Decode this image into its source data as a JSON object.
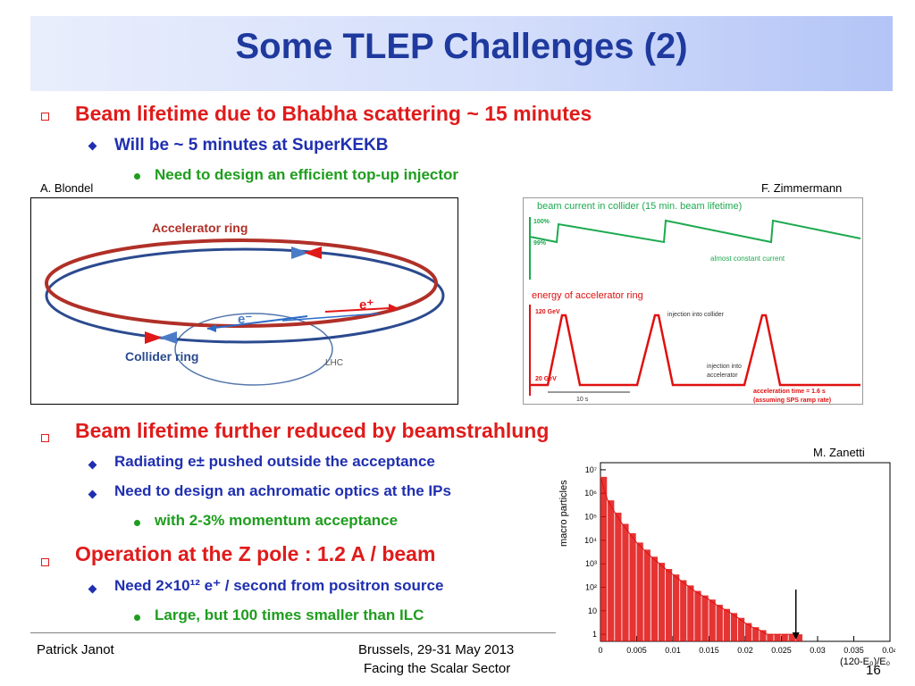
{
  "slide": {
    "title": "Some TLEP Challenges (2)",
    "bullets_top": {
      "l1": "Beam lifetime due to Bhabha scattering ~ 15 minutes",
      "l2": "Will be ~ 5 minutes at SuperKEKB",
      "l3": "Need to design an efficient top-up injector"
    },
    "bullets_bottom": {
      "l1a": "Beam lifetime further reduced by beamstrahlung",
      "l2a": "Radiating e± pushed outside the acceptance",
      "l2b": "Need to design an achromatic optics at the IPs",
      "l3a": "with 2-3% momentum acceptance",
      "l1b": "Operation at the Z pole : 1.2 A / beam",
      "l2c": "Need 2×10¹² e⁺ / second from positron source",
      "l3b": "Large, but 100 times smaller than ILC"
    },
    "credits": {
      "left": "A. Blondel",
      "middle": "F. Zimmermann",
      "right": "M. Zanetti"
    },
    "footer": {
      "author": "Patrick Janot",
      "venue": "Brussels, 29-31 May 2013",
      "event": "Facing the Scalar Sector",
      "page": "16"
    }
  },
  "ring_figure": {
    "accelerator_label": "Accelerator  ring",
    "collider_label": "Collider  ring",
    "electron_label": "e⁻",
    "positron_label": "e⁺",
    "cut_label": "LHC"
  },
  "timeline_figure": {
    "title_top": "beam current in collider (15 min. beam lifetime)",
    "label_100": "100%",
    "label_99": "99%",
    "note_current": "almost constant current",
    "title_bottom": "energy of accelerator ring",
    "label_120": "120 GeV",
    "label_20": "20 GeV",
    "note_inj_collider": "injection into collider",
    "note_inj_acc_1": "injection into",
    "note_inj_acc_2": "accelerator",
    "note_time_1": "acceleration  time = 1.6 s",
    "note_time_2": "(assuming SPS ramp rate)",
    "label_10s": "10 s",
    "colors": {
      "current": "#1daa4f",
      "energy": "#e01010"
    }
  },
  "chart_data": {
    "type": "bar",
    "ylabel": "macro particles",
    "xlabel": "(120-E₀)/E₀",
    "xlim": [
      0,
      0.04
    ],
    "ylim": [
      0.5,
      20000000
    ],
    "yscale": "log",
    "xticks": [
      "0",
      "0.005",
      "0.01",
      "0.015",
      "0.02",
      "0.025",
      "0.03",
      "0.035",
      "0.04"
    ],
    "yticks": [
      "1",
      "10",
      "10²",
      "10³",
      "10⁴",
      "10⁵",
      "10⁶",
      "10⁷"
    ],
    "series": [
      {
        "color": "#e01010",
        "x": [
          0.0,
          0.001,
          0.002,
          0.003,
          0.004,
          0.005,
          0.006,
          0.007,
          0.008,
          0.009,
          0.01,
          0.011,
          0.012,
          0.013,
          0.014,
          0.015,
          0.016,
          0.017,
          0.018,
          0.019,
          0.02,
          0.021,
          0.022,
          0.023,
          0.024,
          0.025,
          0.026,
          0.027
        ],
        "y": [
          5000000,
          500000,
          150000,
          50000,
          20000,
          8000,
          4000,
          2000,
          1100,
          600,
          350,
          200,
          120,
          70,
          45,
          30,
          18,
          12,
          8,
          5,
          3,
          2,
          1.5,
          1,
          1,
          1,
          1,
          1
        ]
      }
    ],
    "annotation": "arrow at x = 0.027"
  }
}
